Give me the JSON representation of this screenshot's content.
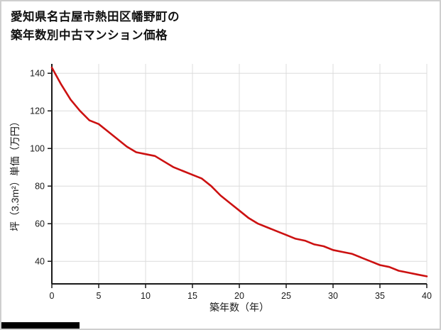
{
  "page": {
    "title_line1": "愛知県名古屋市熱田区幡野町の",
    "title_line2": "築年数別中古マンション価格"
  },
  "chart_data": {
    "type": "line",
    "title": "愛知県名古屋市熱田区幡野町の築年数別中古マンション価格",
    "xlabel": "築年数（年）",
    "ylabel": "坪（3.3m²）単価（万円）",
    "series": [
      {
        "name": "坪単価（万円）",
        "x": [
          0,
          1,
          2,
          3,
          4,
          5,
          6,
          7,
          8,
          9,
          10,
          11,
          12,
          13,
          14,
          15,
          16,
          17,
          18,
          19,
          20,
          21,
          22,
          23,
          24,
          25,
          26,
          27,
          28,
          29,
          30,
          31,
          32,
          33,
          34,
          35,
          36,
          37,
          38,
          39,
          40
        ],
        "values": [
          143,
          134,
          126,
          120,
          115,
          113,
          109,
          105,
          101,
          98,
          97,
          96,
          93,
          90,
          88,
          86,
          84,
          80,
          75,
          71,
          67,
          63,
          60,
          58,
          56,
          54,
          52,
          51,
          49,
          48,
          46,
          45,
          44,
          42,
          40,
          38,
          37,
          35,
          34,
          33,
          32
        ]
      }
    ],
    "xlim": [
      0,
      40
    ],
    "ylim": [
      28,
      145
    ],
    "x_ticks": [
      0,
      5,
      10,
      15,
      20,
      25,
      30,
      35,
      40
    ],
    "y_ticks": [
      40,
      60,
      80,
      100,
      120,
      140
    ],
    "grid": true,
    "legend": "none",
    "line_color": "#cc1111",
    "grid_color": "#dcdcdc",
    "axis_color": "#1a1a1a"
  }
}
